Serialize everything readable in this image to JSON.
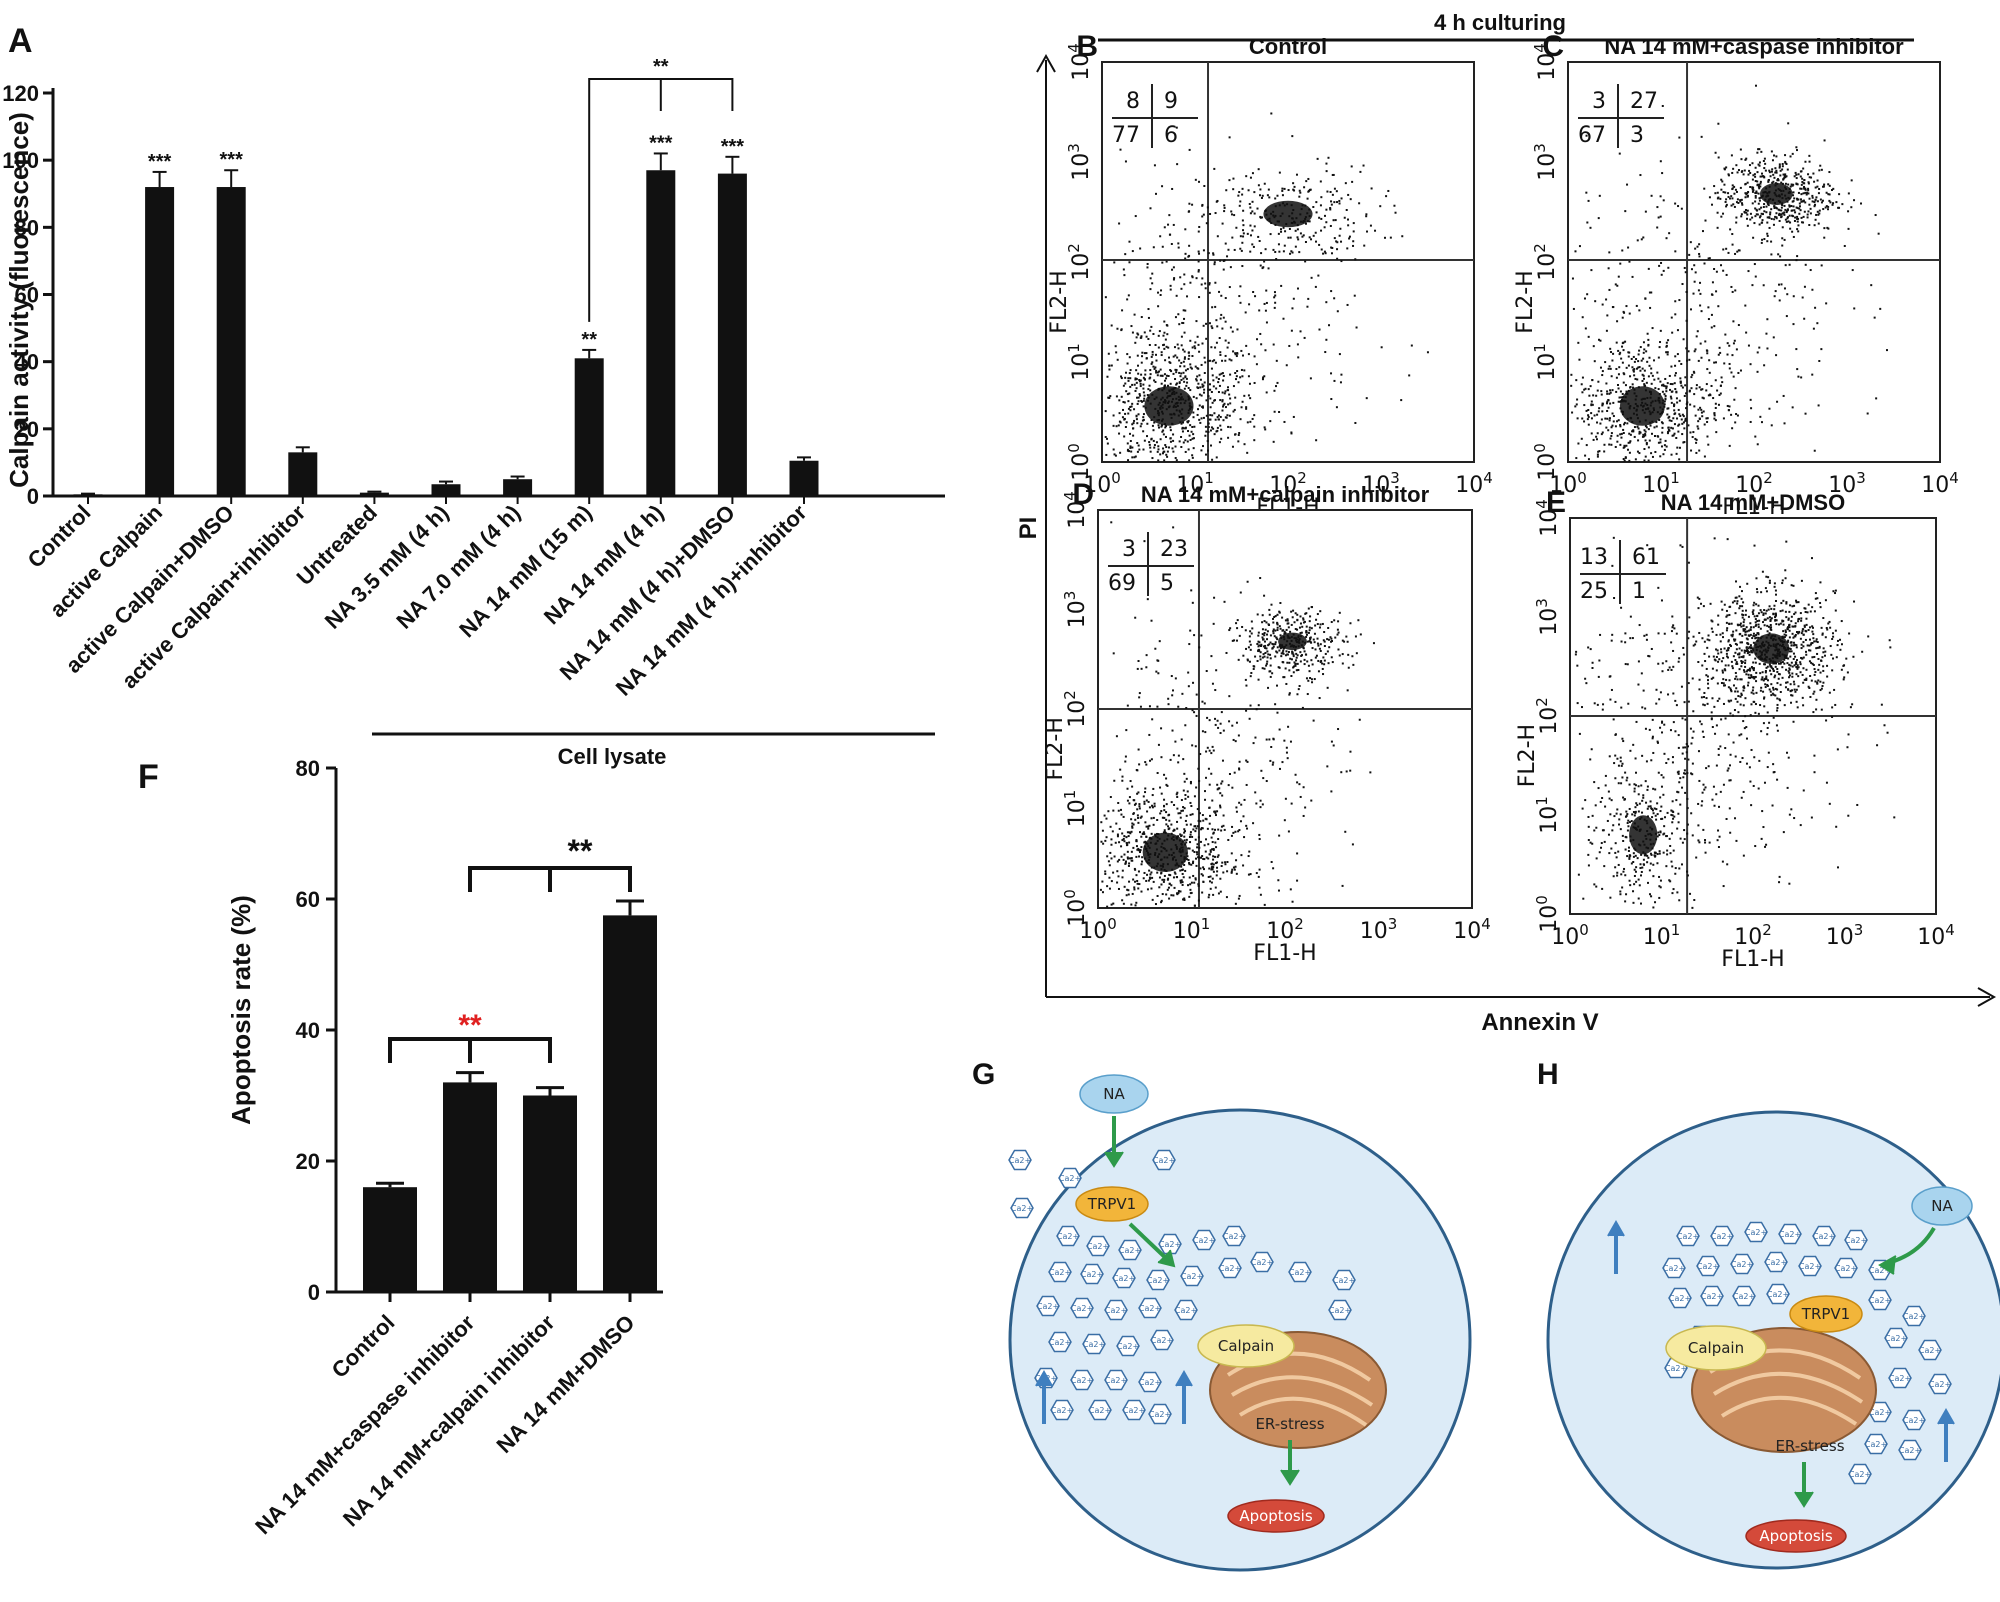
{
  "chart_data": [
    {
      "panel": "A",
      "type": "bar",
      "ylabel": "Calpain activity (fluorescence)",
      "ylim": [
        0,
        120
      ],
      "yticks": [
        0,
        20,
        40,
        60,
        80,
        100,
        120
      ],
      "categories": [
        "Control",
        "active Calpain",
        "active Calpain+DMSO",
        "active Calpain+inhibitor",
        "Untreated",
        "NA 3.5 mM (4 h)",
        "NA 7.0 mM (4 h)",
        "NA 14 mM (15 m)",
        "NA 14 mM (4 h)",
        "NA 14 mM (4 h)+DMSO",
        "NA 14 mM (4 h)+inhibitor"
      ],
      "values": [
        0.5,
        92,
        92,
        13,
        1,
        3.5,
        5,
        41,
        97,
        96,
        10.5
      ],
      "errors": [
        0.2,
        4.5,
        5,
        1.5,
        0.3,
        0.8,
        0.8,
        2.5,
        5,
        5,
        1
      ],
      "significance": [
        "",
        "***",
        "***",
        "",
        "",
        "",
        "",
        "**",
        "***",
        "***",
        ""
      ],
      "comparison": {
        "from": "NA 14 mM (15 m)",
        "to": "NA 14 mM (4 h)+DMSO",
        "label": "**"
      },
      "group_label": "Cell lysate"
    },
    {
      "panel": "F",
      "type": "bar",
      "ylabel": "Apoptosis rate (%)",
      "ylim": [
        0,
        80
      ],
      "yticks": [
        0,
        20,
        40,
        60,
        80
      ],
      "categories": [
        "Control",
        "NA 14 mM+caspase inhibitor",
        "NA 14 mM+calpain inhibitor",
        "NA 14 mM+DMSO"
      ],
      "values": [
        16,
        32,
        30,
        57.5
      ],
      "errors": [
        0.6,
        1.5,
        1.2,
        2.2
      ],
      "comparisons": [
        {
          "label": "**",
          "color": "#e02020"
        },
        {
          "label": "**",
          "color": "#111111"
        }
      ]
    },
    {
      "panel": "B-E",
      "type": "scatter",
      "title": "4 h culturing",
      "xlabel": "Annexin V",
      "ylabel": "PI",
      "x_axis_label": "FL1-H",
      "y_axis_label": "FL2-H",
      "tick_bases": [
        "10",
        "10",
        "10",
        "10",
        "10"
      ],
      "tick_exps": [
        "0",
        "1",
        "2",
        "3",
        "4"
      ],
      "panels": [
        {
          "letter": "B",
          "name": "Control",
          "quadrants": {
            "ul": "8",
            "ur": "9",
            "ll": "77",
            "lr": "6"
          }
        },
        {
          "letter": "C",
          "name": "NA 14 mM+caspase inhibitor",
          "quadrants": {
            "ul": "3",
            "ur": "27",
            "ll": "67",
            "lr": "3"
          }
        },
        {
          "letter": "D",
          "name": "NA 14 mM+calpain inhibitor",
          "quadrants": {
            "ul": "3",
            "ur": "23",
            "ll": "69",
            "lr": "5"
          }
        },
        {
          "letter": "E",
          "name": "NA 14 mM+DMSO",
          "quadrants": {
            "ul": "13",
            "ur": "61",
            "ll": "25",
            "lr": "1"
          }
        }
      ]
    }
  ],
  "schematics": {
    "G": {
      "letter": "G",
      "na": "NA",
      "trpv1": "TRPV1",
      "calpain": "Calpain",
      "er": "ER-stress",
      "apoptosis": "Apoptosis",
      "ion": "Ca2+"
    },
    "H": {
      "letter": "H",
      "na": "NA",
      "trpv1": "TRPV1",
      "calpain": "Calpain",
      "er": "ER-stress",
      "apoptosis": "Apoptosis",
      "ion": "Ca2+"
    }
  },
  "panel_letters": {
    "A": "A",
    "F": "F"
  }
}
